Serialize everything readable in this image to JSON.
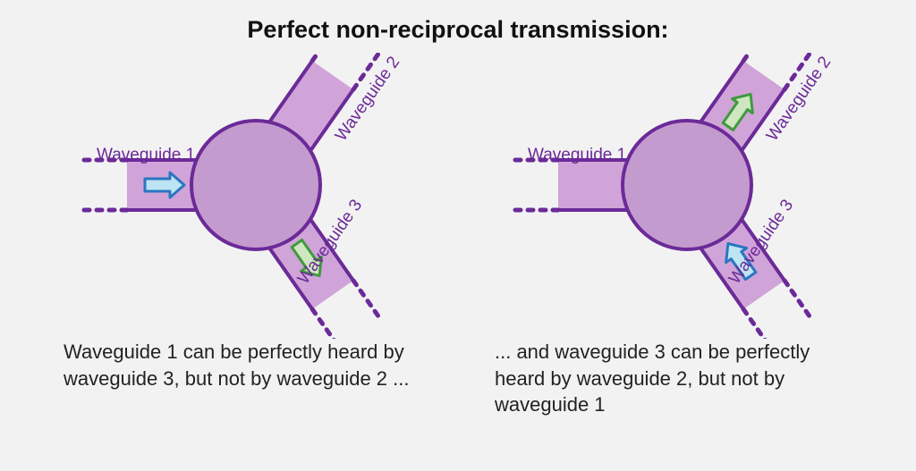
{
  "title": {
    "text": "Perfect non-reciprocal transmission:",
    "fontsize": 27,
    "color": "#111111"
  },
  "colors": {
    "waveguide_fill": "#d0a4d8",
    "waveguide_stroke": "#6b2a98",
    "circle_fill": "#c49bce",
    "circle_stroke": "#6b2a98",
    "label_color": "#6b2a98",
    "arrow_in_fill": "#bde4f2",
    "arrow_in_stroke": "#2a76c2",
    "arrow_out_fill": "#cfe7c0",
    "arrow_out_stroke": "#3f9a3f",
    "background": "#f2f2f2",
    "caption_color": "#222222"
  },
  "geometry": {
    "circle_radius": 72,
    "waveguide_half_width": 28,
    "outline_width": 4,
    "dash_width": 5,
    "arrow_stroke_width": 3
  },
  "labels": {
    "wg1": "Waveguide 1",
    "wg2": "Waveguide 2",
    "wg3": "Waveguide 3",
    "label_fontsize": 19
  },
  "left_panel": {
    "caption": "Waveguide 1 can be perfectly heard by waveguide 3, but not by waveguide 2 ...",
    "caption_fontsize": 22,
    "arrow_in": {
      "waveguide": 1,
      "direction": "into-circle"
    },
    "arrow_out": {
      "waveguide": 3,
      "direction": "out-of-circle"
    }
  },
  "right_panel": {
    "caption": "... and waveguide 3 can be perfectly heard by waveguide 2, but not by waveguide 1",
    "caption_fontsize": 22,
    "arrow_in": {
      "waveguide": 3,
      "direction": "into-circle"
    },
    "arrow_out": {
      "waveguide": 2,
      "direction": "out-of-circle"
    }
  }
}
